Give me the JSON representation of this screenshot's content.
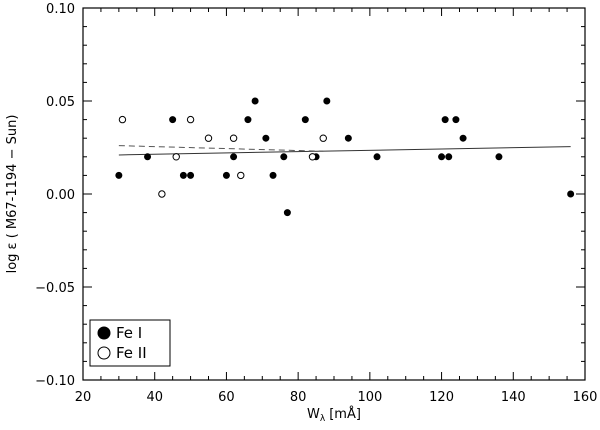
{
  "chart_data": {
    "type": "scatter",
    "xlabel": "W",
    "xlabel_sub": "λ",
    "xlabel_unit": "[mÅ]",
    "ylabel": "log ε ( M67-1194   − Sun)",
    "xlim": [
      20,
      160
    ],
    "ylim": [
      -0.1,
      0.1
    ],
    "x_ticks": [
      20,
      40,
      60,
      80,
      100,
      120,
      140,
      160
    ],
    "y_ticks": [
      -0.1,
      -0.05,
      0.0,
      0.05,
      0.1
    ],
    "x_tick_labels": [
      "20",
      "40",
      "60",
      "80",
      "100",
      "120",
      "140",
      "160"
    ],
    "y_tick_labels": [
      "−0.10",
      "−0.05",
      "0.00",
      "0.05",
      "0.10"
    ],
    "legend_position": "bottom-left",
    "series": [
      {
        "name": "Fe I",
        "marker": "filled-circle",
        "color": "#000000",
        "points": [
          [
            30,
            0.01
          ],
          [
            38,
            0.02
          ],
          [
            45,
            0.04
          ],
          [
            48,
            0.01
          ],
          [
            50,
            0.01
          ],
          [
            60,
            0.01
          ],
          [
            62,
            0.02
          ],
          [
            66,
            0.04
          ],
          [
            68,
            0.05
          ],
          [
            71,
            0.03
          ],
          [
            73,
            0.01
          ],
          [
            76,
            0.02
          ],
          [
            77,
            -0.01
          ],
          [
            82,
            0.04
          ],
          [
            85,
            0.02
          ],
          [
            88,
            0.05
          ],
          [
            94,
            0.03
          ],
          [
            102,
            0.02
          ],
          [
            120,
            0.02
          ],
          [
            121,
            0.04
          ],
          [
            122,
            0.02
          ],
          [
            124,
            0.04
          ],
          [
            126,
            0.03
          ],
          [
            136,
            0.02
          ],
          [
            156,
            0.0
          ]
        ]
      },
      {
        "name": "Fe II",
        "marker": "open-circle",
        "color": "#000000",
        "points": [
          [
            31,
            0.04
          ],
          [
            42,
            0.0
          ],
          [
            46,
            0.02
          ],
          [
            50,
            0.04
          ],
          [
            55,
            0.03
          ],
          [
            62,
            0.03
          ],
          [
            64,
            0.01
          ],
          [
            84,
            0.02
          ],
          [
            87,
            0.03
          ]
        ]
      }
    ],
    "fit_lines": [
      {
        "style": "solid",
        "x": [
          30,
          156
        ],
        "y": [
          0.021,
          0.0255
        ]
      },
      {
        "style": "dashed",
        "x": [
          30,
          87
        ],
        "y": [
          0.026,
          0.023
        ]
      }
    ]
  }
}
